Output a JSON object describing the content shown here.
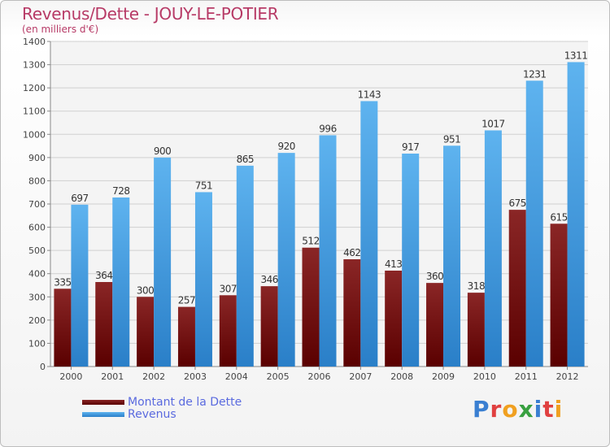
{
  "title": "Revenus/Dette - JOUY-LE-POTIER",
  "subtitle": "(en milliers d'€)",
  "logo": {
    "text": "Proxiti",
    "letters": [
      "P",
      "r",
      "o",
      "x",
      "i",
      "t",
      "i"
    ],
    "colors": [
      "#3a7fd1",
      "#e04040",
      "#f0a020",
      "#38a040",
      "#3a7fd1",
      "#e04040",
      "#f0a020"
    ]
  },
  "chart_data": {
    "type": "bar",
    "categories": [
      "2000",
      "2001",
      "2002",
      "2003",
      "2004",
      "2005",
      "2006",
      "2007",
      "2008",
      "2009",
      "2010",
      "2011",
      "2012"
    ],
    "series": [
      {
        "name": "Montant de la Dette",
        "color": "#7a1414",
        "values": [
          335,
          364,
          300,
          257,
          307,
          346,
          512,
          462,
          413,
          360,
          318,
          675,
          615
        ]
      },
      {
        "name": "Revenus",
        "color": "#4aa3e8",
        "values": [
          697,
          728,
          900,
          751,
          865,
          920,
          996,
          1143,
          917,
          951,
          1017,
          1231,
          1311
        ]
      }
    ],
    "ylim": [
      0,
      1400
    ],
    "yticks": [
      0,
      100,
      200,
      300,
      400,
      500,
      600,
      700,
      800,
      900,
      1000,
      1100,
      1200,
      1300,
      1400
    ],
    "grid": true,
    "legend": "bottom-left"
  }
}
